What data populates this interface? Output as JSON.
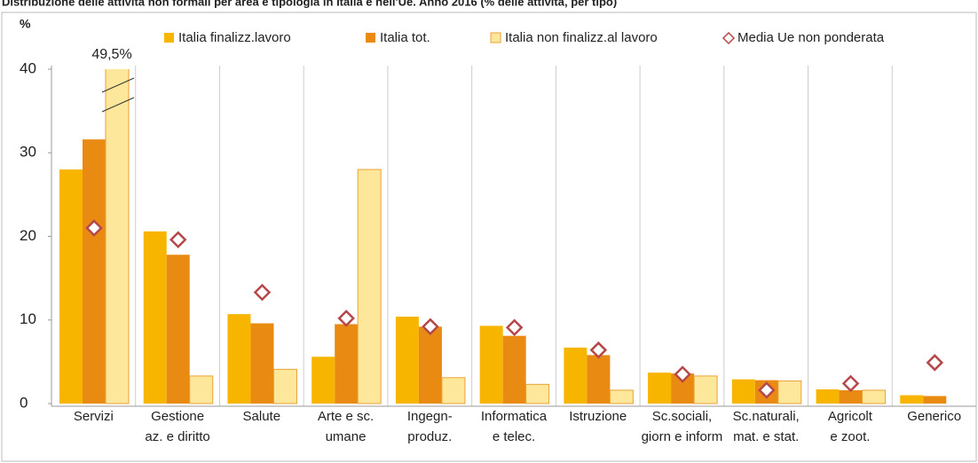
{
  "chart_data": {
    "type": "bar",
    "title": "Distribuzione delle attività non formali per area e tipologia in Italia e nell'Ue. Anno 2016 (% delle attività, per tipo)",
    "y_label": "%",
    "categories": [
      "Servizi",
      "Gestione\naz. e diritto",
      "Salute",
      "Arte e sc.\numane",
      "Ingegn-\nproduz.",
      "Informatica\ne telec.",
      "Istruzione",
      "Sc.sociali,\ngiorn e inform",
      "Sc.naturali,\nmat. e stat.",
      "Agricolt\ne zoot.",
      "Generico"
    ],
    "series": [
      {
        "name": "Italia finalizz.lavoro",
        "color": "#f7b500",
        "values": [
          28,
          20.6,
          10.7,
          5.6,
          10.4,
          9.3,
          6.7,
          3.7,
          2.9,
          1.7,
          1.0
        ]
      },
      {
        "name": "Italia tot.",
        "color": "#e98b12",
        "values": [
          31.6,
          17.8,
          9.6,
          9.5,
          9.2,
          8.1,
          5.8,
          3.6,
          2.8,
          1.6,
          0.9
        ]
      },
      {
        "name": "Italia non finalizz.al lavoro",
        "color": "#fde79a",
        "values": [
          49.5,
          3.3,
          4.1,
          28,
          3.1,
          2.3,
          1.6,
          3.3,
          2.7,
          1.6,
          null
        ],
        "value_labels": [
          "49,5%",
          null,
          null,
          null,
          null,
          null,
          null,
          null,
          null,
          null,
          null
        ]
      },
      {
        "name": "Media Ue non ponderata",
        "color": "#b5484a",
        "marker": "diamond",
        "values": [
          21,
          19.6,
          13.3,
          10.2,
          9.2,
          9.1,
          6.4,
          3.5,
          1.6,
          2.4,
          4.9
        ]
      }
    ],
    "ylim": [
      0,
      40
    ],
    "yticks": [
      0,
      10,
      20,
      30,
      40
    ],
    "grid": "vertical",
    "legend": "top"
  }
}
